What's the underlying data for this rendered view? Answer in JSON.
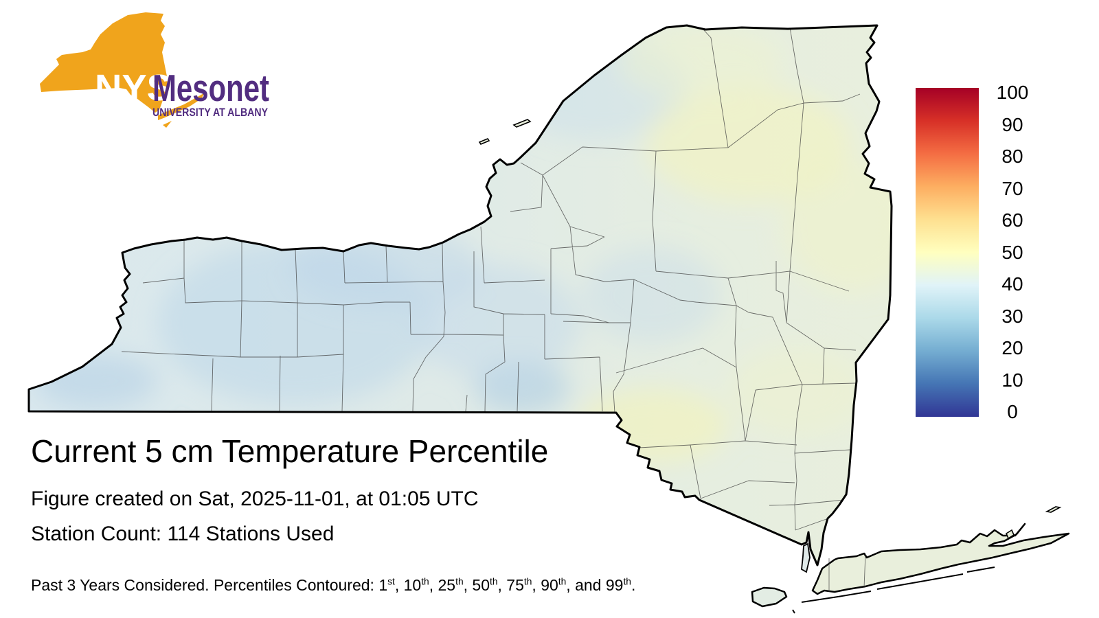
{
  "logo": {
    "nys": "NYS",
    "mesonet": "Mesonet",
    "tagline": "UNIVERSITY AT ALBANY",
    "gold": "#F0A41C",
    "purple": "#522D80"
  },
  "title": "Current 5 cm Temperature Percentile",
  "created_line": "Figure created on Sat, 2025-11-01, at 01:05 UTC",
  "station_line": "Station Count: 114 Stations Used",
  "footer": {
    "lead": "Past 3 Years Considered. Percentiles Contoured: ",
    "items": [
      {
        "n": "1",
        "s": "st",
        "sep": ", "
      },
      {
        "n": "10",
        "s": "th",
        "sep": ", "
      },
      {
        "n": "25",
        "s": "th",
        "sep": ", "
      },
      {
        "n": "50",
        "s": "th",
        "sep": ", "
      },
      {
        "n": "75",
        "s": "th",
        "sep": ", "
      },
      {
        "n": "90",
        "s": "th",
        "sep": ", and "
      },
      {
        "n": "99",
        "s": "th",
        "sep": "."
      }
    ]
  },
  "colorbar": {
    "ticks": [
      "100",
      "90",
      "80",
      "70",
      "60",
      "50",
      "40",
      "30",
      "20",
      "10",
      "0"
    ],
    "min": 0,
    "max": 100,
    "colors_top_to_bottom": [
      "#a50026",
      "#d73027",
      "#f46d43",
      "#fdae61",
      "#fee090",
      "#ffffbf",
      "#e0f3f8",
      "#abd9e9",
      "#74add1",
      "#4575b4",
      "#313695"
    ]
  },
  "chart_data": {
    "type": "heatmap",
    "title": "Current 5 cm Temperature Percentile",
    "units": "percentile",
    "range": [
      0,
      100
    ],
    "colormap": "RdYlBu reversed (blue = low percentile, red = high percentile)",
    "legend_position": "right",
    "region_shown": "New York State with county boundaries, NYC and Long Island",
    "regions_estimated": [
      {
        "region": "Western NY / Lake Erie shore",
        "value": 35
      },
      {
        "region": "Finger Lakes",
        "value": 37
      },
      {
        "region": "Central NY (Syracuse-Binghamton)",
        "value": 38
      },
      {
        "region": "Tug Hill / Watertown",
        "value": 42
      },
      {
        "region": "Adirondacks",
        "value": 46
      },
      {
        "region": "Northeast (Franklin/Clinton)",
        "value": 52
      },
      {
        "region": "Champlain Valley",
        "value": 50
      },
      {
        "region": "Capital District / Hudson Valley",
        "value": 48
      },
      {
        "region": "Catskills",
        "value": 51
      },
      {
        "region": "NYC / Long Island",
        "value": 47
      }
    ]
  }
}
